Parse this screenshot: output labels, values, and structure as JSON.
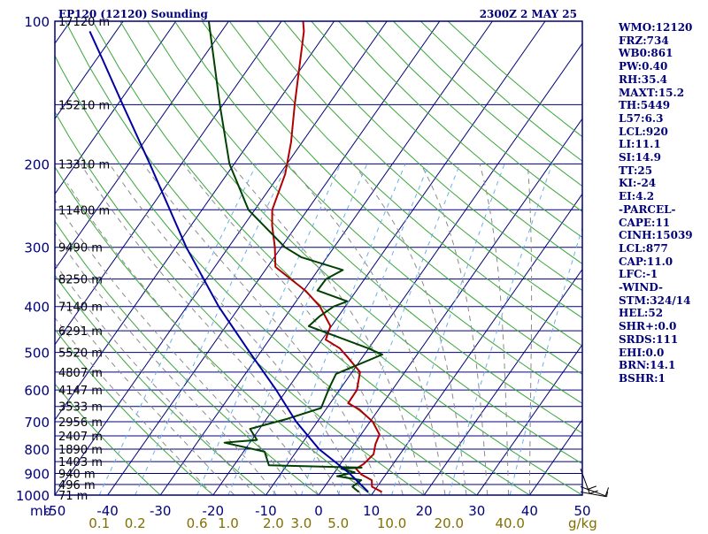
{
  "chart_data": {
    "type": "line",
    "title": "EP120 (12120) Sounding",
    "valid_time": "2300Z  2 MAY 25",
    "pressure_axis": {
      "unit_label": "mb",
      "scale": "log",
      "range": [
        1000,
        100
      ],
      "ticks": [
        "100",
        "200",
        "300",
        "400",
        "500",
        "600",
        "700",
        "800",
        "900",
        "1000"
      ]
    },
    "temperature_axis": {
      "skew": true,
      "range": [
        -50,
        50
      ],
      "ticks": [
        "-50",
        "-40",
        "-30",
        "-20",
        "-10",
        "0",
        "10",
        "20",
        "30",
        "40",
        "50"
      ]
    },
    "mixing_ratio_axis": {
      "unit_label": "g/kg",
      "ticks": [
        "0.1",
        "0.2",
        "0.6",
        "1.0",
        "2.0",
        "3.0",
        "5.0",
        "10.0",
        "20.0",
        "40.0"
      ]
    },
    "height_labels": [
      {
        "p": 100,
        "label": "17120 m"
      },
      {
        "p": 150,
        "label": "15210 m"
      },
      {
        "p": 200,
        "label": "13310 m"
      },
      {
        "p": 250,
        "label": "11400 m"
      },
      {
        "p": 300,
        "label": "9490 m"
      },
      {
        "p": 350,
        "label": "8250 m"
      },
      {
        "p": 400,
        "label": "7140 m"
      },
      {
        "p": 450,
        "label": "6291 m"
      },
      {
        "p": 500,
        "label": "5520 m"
      },
      {
        "p": 550,
        "label": "4807 m"
      },
      {
        "p": 600,
        "label": "4147 m"
      },
      {
        "p": 650,
        "label": "3533 m"
      },
      {
        "p": 700,
        "label": "2956 m"
      },
      {
        "p": 750,
        "label": "2407 m"
      },
      {
        "p": 800,
        "label": "1890 m"
      },
      {
        "p": 850,
        "label": "1403 m"
      },
      {
        "p": 900,
        "label": "940 m"
      },
      {
        "p": 950,
        "label": "496 m"
      },
      {
        "p": 1000,
        "label": "71 m"
      }
    ],
    "series": [
      {
        "color": "#b00000",
        "points": [
          {
            "p": 985,
            "t": 11.6
          },
          {
            "p": 960,
            "t": 9.0
          },
          {
            "p": 930,
            "t": 8.1
          },
          {
            "p": 905,
            "t": 5.4
          },
          {
            "p": 880,
            "t": 3.6
          },
          {
            "p": 860,
            "t": 4.4
          },
          {
            "p": 820,
            "t": 5.0
          },
          {
            "p": 780,
            "t": 4.0
          },
          {
            "p": 745,
            "t": 3.5
          },
          {
            "p": 700,
            "t": 0.5
          },
          {
            "p": 660,
            "t": -3.6
          },
          {
            "p": 640,
            "t": -6.6
          },
          {
            "p": 600,
            "t": -6.7
          },
          {
            "p": 550,
            "t": -8.5
          },
          {
            "p": 510,
            "t": -13.0
          },
          {
            "p": 490,
            "t": -15.5
          },
          {
            "p": 470,
            "t": -19.3
          },
          {
            "p": 440,
            "t": -20.2
          },
          {
            "p": 400,
            "t": -24.8
          },
          {
            "p": 370,
            "t": -29.7
          },
          {
            "p": 350,
            "t": -34.0
          },
          {
            "p": 330,
            "t": -38.5
          },
          {
            "p": 300,
            "t": -41.2
          },
          {
            "p": 270,
            "t": -44.6
          },
          {
            "p": 250,
            "t": -46.7
          },
          {
            "p": 210,
            "t": -49.0
          },
          {
            "p": 180,
            "t": -52.1
          },
          {
            "p": 150,
            "t": -56.4
          },
          {
            "p": 125,
            "t": -60.5
          },
          {
            "p": 105,
            "t": -64.4
          },
          {
            "p": 99,
            "t": -66.2
          }
        ]
      },
      {
        "color": "#004000",
        "points": [
          {
            "p": 985,
            "t": 7.2
          },
          {
            "p": 960,
            "t": 5.3
          },
          {
            "p": 930,
            "t": 6.1
          },
          {
            "p": 912,
            "t": 1.0
          },
          {
            "p": 895,
            "t": 3.8
          },
          {
            "p": 880,
            "t": 0.8
          },
          {
            "p": 875,
            "t": 4.5
          },
          {
            "p": 865,
            "t": -13.4
          },
          {
            "p": 810,
            "t": -16.0
          },
          {
            "p": 775,
            "t": -24.8
          },
          {
            "p": 765,
            "t": -19.0
          },
          {
            "p": 725,
            "t": -21.8
          },
          {
            "p": 690,
            "t": -16.0
          },
          {
            "p": 655,
            "t": -11.1
          },
          {
            "p": 595,
            "t": -12.2
          },
          {
            "p": 555,
            "t": -12.8
          },
          {
            "p": 505,
            "t": -6.6
          },
          {
            "p": 490,
            "t": -10.1
          },
          {
            "p": 440,
            "t": -24.3
          },
          {
            "p": 420,
            "t": -23.6
          },
          {
            "p": 400,
            "t": -22.2
          },
          {
            "p": 390,
            "t": -20.3
          },
          {
            "p": 370,
            "t": -27.4
          },
          {
            "p": 350,
            "t": -27.3
          },
          {
            "p": 335,
            "t": -25.3
          },
          {
            "p": 315,
            "t": -34.8
          },
          {
            "p": 300,
            "t": -39.3
          },
          {
            "p": 250,
            "t": -51.2
          },
          {
            "p": 200,
            "t": -60.9
          },
          {
            "p": 150,
            "t": -70.6
          },
          {
            "p": 99,
            "t": -84.1
          }
        ]
      },
      {
        "color": "#0000a0",
        "points": [
          {
            "p": 985,
            "t": 9.0
          },
          {
            "p": 900,
            "t": 3.0
          },
          {
            "p": 800,
            "t": -6.0
          },
          {
            "p": 700,
            "t": -14.0
          },
          {
            "p": 600,
            "t": -22.0
          },
          {
            "p": 500,
            "t": -32.0
          },
          {
            "p": 400,
            "t": -44.0
          },
          {
            "p": 300,
            "t": -58.0
          },
          {
            "p": 200,
            "t": -76.0
          },
          {
            "p": 150,
            "t": -89.0
          },
          {
            "p": 120,
            "t": -99.0
          },
          {
            "p": 105,
            "t": -105.0
          }
        ]
      }
    ],
    "wind_barbs": [
      {
        "p": 880,
        "direction_deg": 340,
        "speed_kt": 20
      },
      {
        "p": 960,
        "direction_deg": 290,
        "speed_kt": 10
      },
      {
        "p": 985,
        "direction_deg": 280,
        "speed_kt": 5
      }
    ],
    "sounding_indices": [
      "WMO:12120",
      "FRZ:734",
      "WB0:861",
      "PW:0.40",
      "RH:35.4",
      "MAXT:15.2",
      "TH:5449",
      "L57:6.3",
      "LCL:920",
      "LI:11.1",
      "SI:14.9",
      "TT:25",
      "KI:-24",
      "EI:4.2",
      "-PARCEL-",
      "CAPE:11",
      "CINH:15039",
      "LCL:877",
      "CAP:11.0",
      "LFC:-1",
      "-WIND-",
      "STM:324/14",
      "HEL:52",
      "SHR+:0.0",
      "SRDS:111",
      "EHI:0.0",
      "BRN:14.1",
      "BSHR:1"
    ],
    "colors": {
      "isobar": "#00007a",
      "isotherm": "#00007a",
      "dry_adiabat": "#3aa63a",
      "moist_adiabat": "#8a8a8a",
      "mixing_ratio": "#6ab0e8",
      "temperature": "#b00000",
      "dewpoint": "#004000",
      "parcel": "#0000a0",
      "axis_text": "#00007a",
      "mixing_text": "#807000",
      "wind": "#000000"
    },
    "grid": true
  }
}
